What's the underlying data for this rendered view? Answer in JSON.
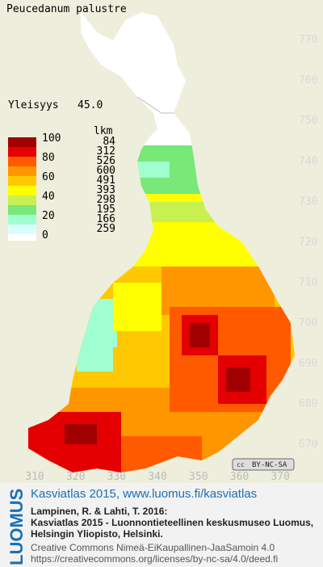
{
  "header": {
    "title": "Peucedanum palustre",
    "index_label": "Yleisyys",
    "index_value": "45.0"
  },
  "legend": {
    "class_labels": [
      "100",
      "80",
      "60",
      "40",
      "20",
      "0"
    ],
    "count_header": "lkm",
    "counts": [
      84,
      312,
      526,
      600,
      491,
      393,
      298,
      195,
      166,
      259
    ],
    "colors": [
      "#a00000",
      "#e40000",
      "#ff5a00",
      "#ff9600",
      "#ffc800",
      "#ffff00",
      "#c8f050",
      "#78e878",
      "#a0ffd0",
      "#d8ffff",
      "#ffffff"
    ]
  },
  "axes": {
    "x_ticks": [
      310,
      320,
      330,
      340,
      350,
      360,
      370
    ],
    "y_ticks": [
      770,
      760,
      750,
      740,
      730,
      720,
      710,
      700,
      690,
      680,
      670
    ]
  },
  "badge": "BY-NC-SA",
  "footer": {
    "logo": "LUOMUS",
    "link": "Kasviatlas 2015, www.luomus.fi/kasviatlas",
    "citation": [
      "Lampinen, R. & Lahti, T. 2016:",
      "Kasviatlas 2015 - Luonnontieteellinen keskusmuseo Luomus,",
      "Helsingin Yliopisto, Helsinki."
    ],
    "license": [
      "Creative Commons Nimeä-EiKaupallinen-JaaSamoin 4.0",
      "https://creativecommons.org/licenses/by-nc-sa/4.0/deed.fi"
    ]
  }
}
